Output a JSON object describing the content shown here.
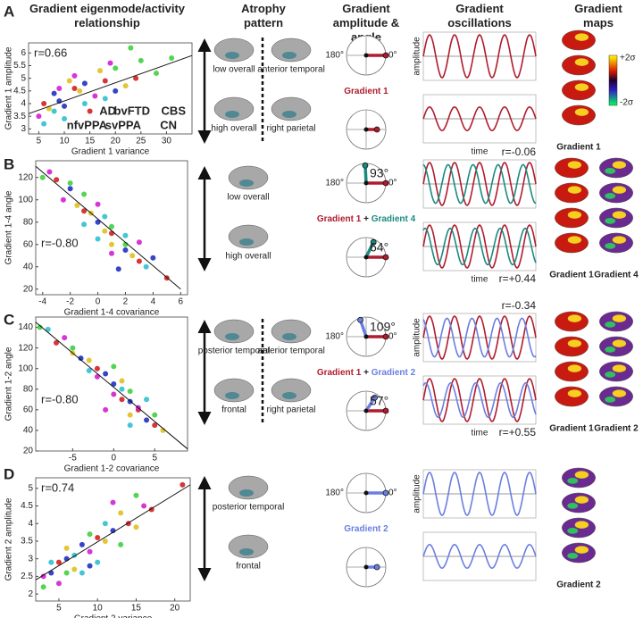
{
  "headers": [
    "Gradient eigenmode/activity relationship",
    "Atrophy pattern",
    "Gradient amplitude & angle",
    "Gradient oscillations",
    "Gradient maps"
  ],
  "chart_data": [
    {
      "type": "scatter",
      "x_label": "Gradient 1 variance",
      "y_label": "Gradient 1 amplitude",
      "annotation": "r=0.66",
      "xlim": [
        3,
        35
      ],
      "ylim": [
        2.8,
        6.4
      ],
      "xticks": [
        5,
        10,
        15,
        20,
        25,
        30
      ],
      "yticks": [
        3,
        3.5,
        4,
        4.5,
        5,
        5.5,
        6
      ],
      "fit": {
        "x": [
          3,
          35
        ],
        "values": [
          3.6,
          5.9
        ]
      },
      "series": [
        {
          "name": "AD",
          "color": "#d42020",
          "x": [
            6,
            12,
            18,
            24,
            15
          ],
          "values": [
            4.0,
            4.6,
            4.9,
            5.0,
            3.7
          ]
        },
        {
          "name": "bvFTD",
          "color": "#2030c0",
          "x": [
            8,
            10,
            14,
            20,
            9
          ],
          "values": [
            4.4,
            3.9,
            4.8,
            4.5,
            4.1
          ]
        },
        {
          "name": "CBS",
          "color": "#e0c020",
          "x": [
            7,
            13,
            17,
            11,
            22
          ],
          "values": [
            3.8,
            4.5,
            5.3,
            4.9,
            4.7
          ]
        },
        {
          "name": "nfvPPA",
          "color": "#d020d0",
          "x": [
            5,
            9,
            16,
            12,
            19
          ],
          "values": [
            3.5,
            4.6,
            4.3,
            5.1,
            5.6
          ]
        },
        {
          "name": "svPPA",
          "color": "#30c0d0",
          "x": [
            6,
            10,
            14,
            8,
            18
          ],
          "values": [
            3.2,
            3.4,
            4.0,
            3.7,
            4.2
          ]
        },
        {
          "name": "CN",
          "color": "#40d040",
          "x": [
            20,
            25,
            28,
            31,
            23
          ],
          "values": [
            5.4,
            5.7,
            5.2,
            5.8,
            6.2
          ]
        }
      ]
    },
    {
      "type": "scatter",
      "x_label": "Gradient 1-4 covariance",
      "y_label": "Gradient 1-4 angle",
      "annotation": "r=-0.80",
      "xlim": [
        -4.5,
        6.5
      ],
      "ylim": [
        15,
        135
      ],
      "xticks": [
        -4,
        -2,
        0,
        2,
        4,
        6
      ],
      "yticks": [
        20,
        40,
        60,
        80,
        100,
        120
      ],
      "fit": {
        "x": [
          -4.5,
          6
        ],
        "values": [
          130,
          20
        ]
      },
      "series": [
        {
          "color": "#d42020",
          "x": [
            -3,
            -1,
            1,
            3,
            5
          ],
          "values": [
            118,
            90,
            70,
            45,
            30
          ]
        },
        {
          "color": "#2030c0",
          "x": [
            -2,
            0,
            2,
            1.5,
            4
          ],
          "values": [
            110,
            80,
            55,
            38,
            48
          ]
        },
        {
          "color": "#e0c020",
          "x": [
            -1.5,
            0.5,
            1,
            -0.5,
            2.5
          ],
          "values": [
            95,
            72,
            60,
            88,
            50
          ]
        },
        {
          "color": "#d020d0",
          "x": [
            -3.5,
            -2.5,
            0,
            1,
            3
          ],
          "values": [
            125,
            100,
            96,
            52,
            62
          ]
        },
        {
          "color": "#30c0d0",
          "x": [
            -1,
            0,
            2,
            3.5,
            0.5
          ],
          "values": [
            78,
            65,
            68,
            40,
            85
          ]
        },
        {
          "color": "#40d040",
          "x": [
            -4,
            -2,
            -1,
            1,
            2
          ],
          "values": [
            120,
            115,
            105,
            76,
            60
          ]
        }
      ]
    },
    {
      "type": "scatter",
      "x_label": "Gradient 1-2 covariance",
      "y_label": "Gradient 1-2 angle",
      "annotation": "r=-0.80",
      "xlim": [
        -9.5,
        9
      ],
      "ylim": [
        20,
        150
      ],
      "xticks": [
        -5,
        0,
        5
      ],
      "yticks": [
        20,
        40,
        60,
        80,
        100,
        120,
        140
      ],
      "fit": {
        "x": [
          -9.5,
          9
        ],
        "values": [
          145,
          22
        ]
      },
      "series": [
        {
          "color": "#d42020",
          "x": [
            -7,
            -2,
            1,
            3,
            5
          ],
          "values": [
            125,
            100,
            70,
            60,
            45
          ]
        },
        {
          "color": "#2030c0",
          "x": [
            -4,
            0,
            2,
            4,
            -1
          ],
          "values": [
            110,
            85,
            68,
            50,
            95
          ]
        },
        {
          "color": "#e0c020",
          "x": [
            -3,
            1,
            2,
            -5,
            6
          ],
          "values": [
            108,
            88,
            55,
            115,
            40
          ]
        },
        {
          "color": "#d020d0",
          "x": [
            -6,
            -2,
            0,
            3,
            -1
          ],
          "values": [
            130,
            92,
            75,
            62,
            60
          ]
        },
        {
          "color": "#30c0d0",
          "x": [
            -8,
            -3,
            1,
            2,
            4
          ],
          "values": [
            138,
            98,
            80,
            45,
            70
          ]
        },
        {
          "color": "#40d040",
          "x": [
            -9,
            -5,
            0,
            2,
            5
          ],
          "values": [
            140,
            120,
            102,
            78,
            55
          ]
        }
      ]
    },
    {
      "type": "scatter",
      "x_label": "Gradient 2 variance",
      "y_label": "Gradient 2 amplitude",
      "annotation": "r=0.74",
      "xlim": [
        2,
        22
      ],
      "ylim": [
        1.8,
        5.3
      ],
      "xticks": [
        5,
        10,
        15,
        20
      ],
      "yticks": [
        2,
        2.5,
        3,
        3.5,
        4,
        4.5,
        5
      ],
      "fit": {
        "x": [
          2,
          22
        ],
        "values": [
          2.4,
          5.1
        ]
      },
      "series": [
        {
          "color": "#d42020",
          "x": [
            5,
            10,
            14,
            17,
            21
          ],
          "values": [
            2.9,
            3.6,
            4.0,
            4.4,
            5.1
          ]
        },
        {
          "color": "#2030c0",
          "x": [
            4,
            8,
            12,
            6,
            9
          ],
          "values": [
            2.6,
            3.4,
            3.8,
            3.0,
            2.8
          ]
        },
        {
          "color": "#e0c020",
          "x": [
            6,
            11,
            13,
            7,
            15
          ],
          "values": [
            3.3,
            3.5,
            4.3,
            2.7,
            3.9
          ]
        },
        {
          "color": "#d020d0",
          "x": [
            3,
            9,
            12,
            5,
            16
          ],
          "values": [
            2.5,
            3.2,
            4.6,
            2.3,
            4.5
          ]
        },
        {
          "color": "#30c0d0",
          "x": [
            4,
            7,
            10,
            11,
            8
          ],
          "values": [
            2.9,
            3.1,
            2.9,
            4.0,
            2.6
          ]
        },
        {
          "color": "#40d040",
          "x": [
            3,
            6,
            9,
            13,
            15
          ],
          "values": [
            2.2,
            2.6,
            3.7,
            3.4,
            4.8
          ]
        }
      ]
    }
  ],
  "panels": [
    {
      "letter": "A",
      "atrophy": [
        "low overall",
        "high overall",
        "anterior temporal",
        "right parietal"
      ],
      "axis_labels": [
        "180°",
        "0°"
      ],
      "dials": [
        {
          "vectors": [
            {
              "color": "#b01c2e",
              "angle": 0,
              "length": 1
            }
          ]
        },
        {
          "vectors": [
            {
              "color": "#b01c2e",
              "angle": 0,
              "length": 0.55
            }
          ]
        }
      ],
      "dial_label": [
        {
          "text": "Gradient 1",
          "color": "#b01c2e"
        }
      ],
      "oscillation": {
        "y_label": "amplitude",
        "x_label": "time",
        "r_labels": []
      },
      "maps": {
        "columns": [
          {
            "label": "Gradient 1",
            "color": "#b01c2e"
          }
        ],
        "colorbar": [
          "+2σ",
          "-2σ"
        ]
      }
    },
    {
      "letter": "B",
      "atrophy": [
        "low overall",
        "high overall"
      ],
      "axis_labels": [
        "180°",
        "0°"
      ],
      "dials": [
        {
          "vectors": [
            {
              "color": "#b01c2e",
              "angle": 0,
              "length": 1
            },
            {
              "color": "#1a8a80",
              "angle": 93,
              "angle_label": "93°",
              "length": 0.9
            }
          ]
        },
        {
          "vectors": [
            {
              "color": "#b01c2e",
              "angle": 0,
              "length": 1
            },
            {
              "color": "#1a8a80",
              "angle": 64,
              "angle_label": "64°",
              "length": 0.85
            }
          ]
        }
      ],
      "dial_label": [
        {
          "text": "Gradient 1",
          "color": "#b01c2e"
        },
        {
          "text": "+",
          "color": "#222222"
        },
        {
          "text": "Gradient 4",
          "color": "#1a8a80"
        }
      ],
      "oscillation": {
        "x_label": "time",
        "r_labels": [
          "r=-0.06",
          "r=+0.44"
        ]
      },
      "maps": {
        "columns": [
          {
            "label": "Gradient 1",
            "color": "#b01c2e"
          },
          {
            "label": "Gradient 4",
            "color": "#1a8a80"
          }
        ]
      }
    },
    {
      "letter": "C",
      "atrophy": [
        "posterior temporal",
        "frontal",
        "anterior temporal",
        "right parietal"
      ],
      "axis_labels": [
        "180°",
        "0°"
      ],
      "dials": [
        {
          "vectors": [
            {
              "color": "#b01c2e",
              "angle": 0,
              "length": 1
            },
            {
              "color": "#6a7fe0",
              "angle": 109,
              "angle_label": "109°",
              "length": 0.9
            }
          ]
        },
        {
          "vectors": [
            {
              "color": "#b01c2e",
              "angle": 0,
              "length": 1
            },
            {
              "color": "#6a7fe0",
              "angle": 57,
              "angle_label": "57°",
              "length": 0.8
            }
          ]
        }
      ],
      "dial_label": [
        {
          "text": "Gradient 1",
          "color": "#b01c2e"
        },
        {
          "text": "+",
          "color": "#222222"
        },
        {
          "text": "Gradient 2",
          "color": "#6a7fe0"
        }
      ],
      "oscillation": {
        "y_label": "amplitude",
        "x_label": "time",
        "r_labels": [
          "r=-0.34",
          "r=+0.55"
        ]
      },
      "maps": {
        "columns": [
          {
            "label": "Gradient 1",
            "color": "#b01c2e"
          },
          {
            "label": "Gradient 2",
            "color": "#6a7fe0"
          }
        ]
      }
    },
    {
      "letter": "D",
      "atrophy": [
        "posterior temporal",
        "frontal"
      ],
      "axis_labels": [
        "180°",
        "0°"
      ],
      "dials": [
        {
          "vectors": [
            {
              "color": "#6a7fe0",
              "angle": 0,
              "length": 1
            }
          ]
        },
        {
          "vectors": [
            {
              "color": "#6a7fe0",
              "angle": 0,
              "length": 0.55
            }
          ]
        }
      ],
      "dial_label": [
        {
          "text": "Gradient 2",
          "color": "#6a7fe0"
        }
      ],
      "oscillation": {
        "y_label": "amplitude",
        "r_labels": []
      },
      "maps": {
        "columns": [
          {
            "label": "Gradient 2",
            "color": "#6a7fe0"
          }
        ]
      }
    }
  ]
}
